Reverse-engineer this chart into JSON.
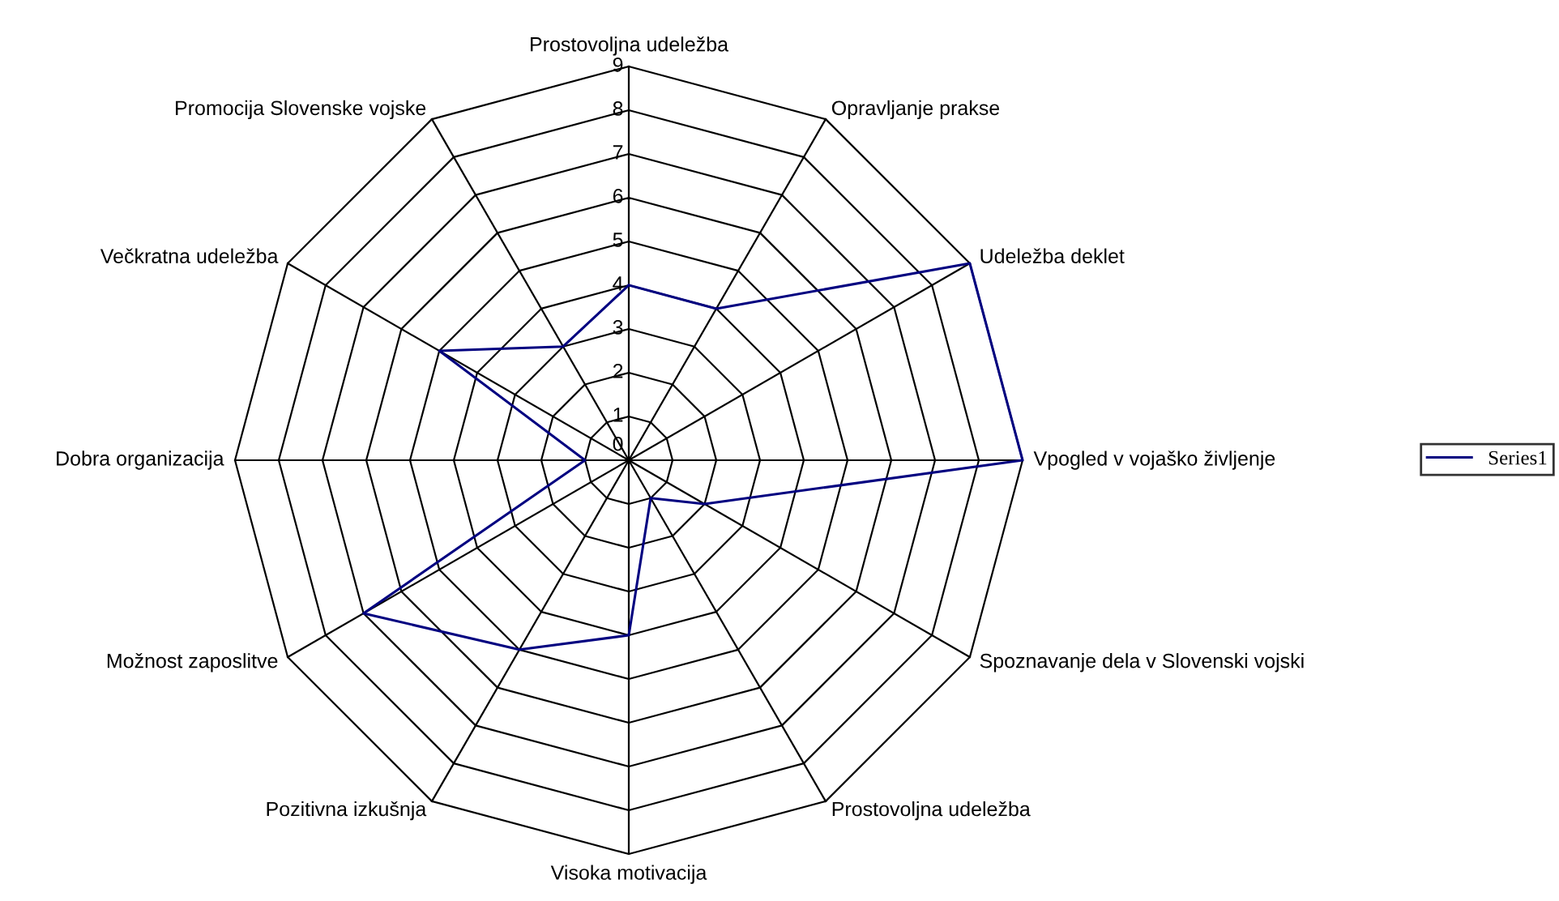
{
  "chart_data": {
    "type": "radar",
    "categories": [
      "Prostovoljna udeležba",
      "Opravljanje prakse",
      "Udeležba deklet",
      "Vpogled v vojaško življenje",
      "Spoznavanje dela v Slovenski vojski",
      "Prostovoljna udeležba",
      "Visoka motivacija",
      "Pozitivna izkušnja",
      "Možnost zaposlitve",
      "Dobra organizacija",
      "Večkratna udeležba",
      "Promocija Slovenske vojske"
    ],
    "series": [
      {
        "name": "Series1",
        "color": "#000080",
        "values": [
          4,
          4,
          9,
          9,
          2,
          1,
          4,
          5,
          7,
          1,
          5,
          3
        ]
      }
    ],
    "ylim": [
      0,
      9
    ],
    "yticks": [
      0,
      1,
      2,
      3,
      4,
      5,
      6,
      7,
      8,
      9
    ],
    "grid": true,
    "legend": "right",
    "marker": "none",
    "line_style": "solid"
  }
}
